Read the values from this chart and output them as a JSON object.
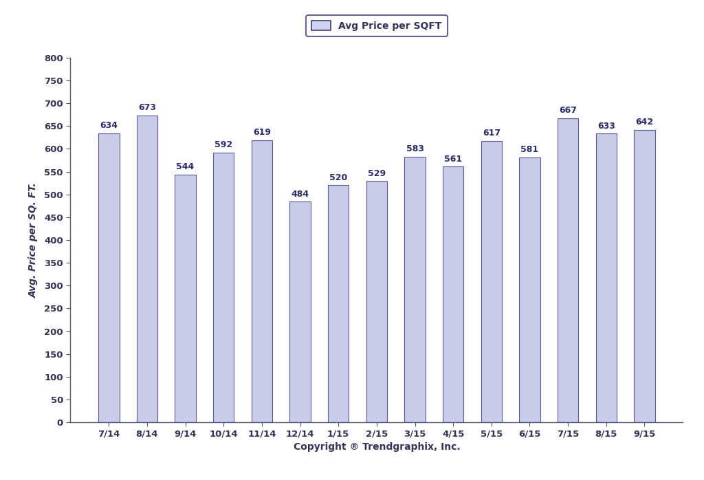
{
  "categories": [
    "7/14",
    "8/14",
    "9/14",
    "10/14",
    "11/14",
    "12/14",
    "1/15",
    "2/15",
    "3/15",
    "4/15",
    "5/15",
    "6/15",
    "7/15",
    "8/15",
    "9/15"
  ],
  "values": [
    634,
    673,
    544,
    592,
    619,
    484,
    520,
    529,
    583,
    561,
    617,
    581,
    667,
    633,
    642
  ],
  "bar_color": "#c8cce8",
  "bar_edgecolor": "#5a5a9a",
  "ylabel": "Avg. Price per SQ. FT.",
  "xlabel": "Copyright ® Trendgraphix, Inc.",
  "ylim": [
    0,
    800
  ],
  "yticks": [
    0,
    50,
    100,
    150,
    200,
    250,
    300,
    350,
    400,
    450,
    500,
    550,
    600,
    650,
    700,
    750,
    800
  ],
  "legend_label": "Avg Price per SQFT",
  "legend_facecolor": "#d0d4f0",
  "legend_edgecolor": "#3a3a7a",
  "bar_label_fontsize": 9,
  "bar_label_color": "#2a2a6a",
  "axis_label_fontsize": 10,
  "tick_fontsize": 9.5,
  "legend_fontsize": 10,
  "xlabel_fontsize": 10,
  "background_color": "#ffffff",
  "spine_color": "#555577",
  "tick_color": "#333355"
}
